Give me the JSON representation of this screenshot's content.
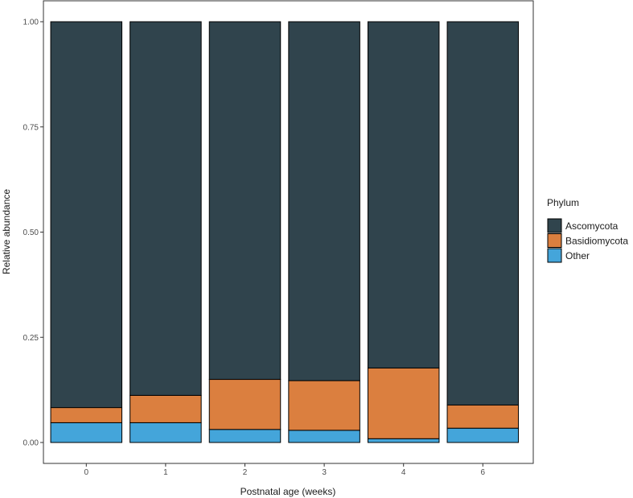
{
  "chart_data": {
    "type": "bar",
    "stacked": true,
    "xlabel": "Postnatal age (weeks)",
    "ylabel": "Relative abundance",
    "categories": [
      "0",
      "1",
      "2",
      "3",
      "4",
      "6"
    ],
    "ylim": [
      0,
      1
    ],
    "yticks": [
      "0.00",
      "0.25",
      "0.50",
      "0.75",
      "1.00"
    ],
    "grid": false,
    "legend": {
      "title": "Phylum",
      "position": "right"
    },
    "series": [
      {
        "name": "Other",
        "color": "#44A5DA",
        "values": [
          0.047,
          0.047,
          0.031,
          0.029,
          0.009,
          0.034
        ]
      },
      {
        "name": "Basidiomycota",
        "color": "#DB7F3F",
        "values": [
          0.036,
          0.065,
          0.119,
          0.118,
          0.168,
          0.055
        ]
      },
      {
        "name": "Ascomycota",
        "color": "#30444D",
        "values": [
          0.917,
          0.888,
          0.85,
          0.853,
          0.823,
          0.911
        ]
      }
    ]
  }
}
